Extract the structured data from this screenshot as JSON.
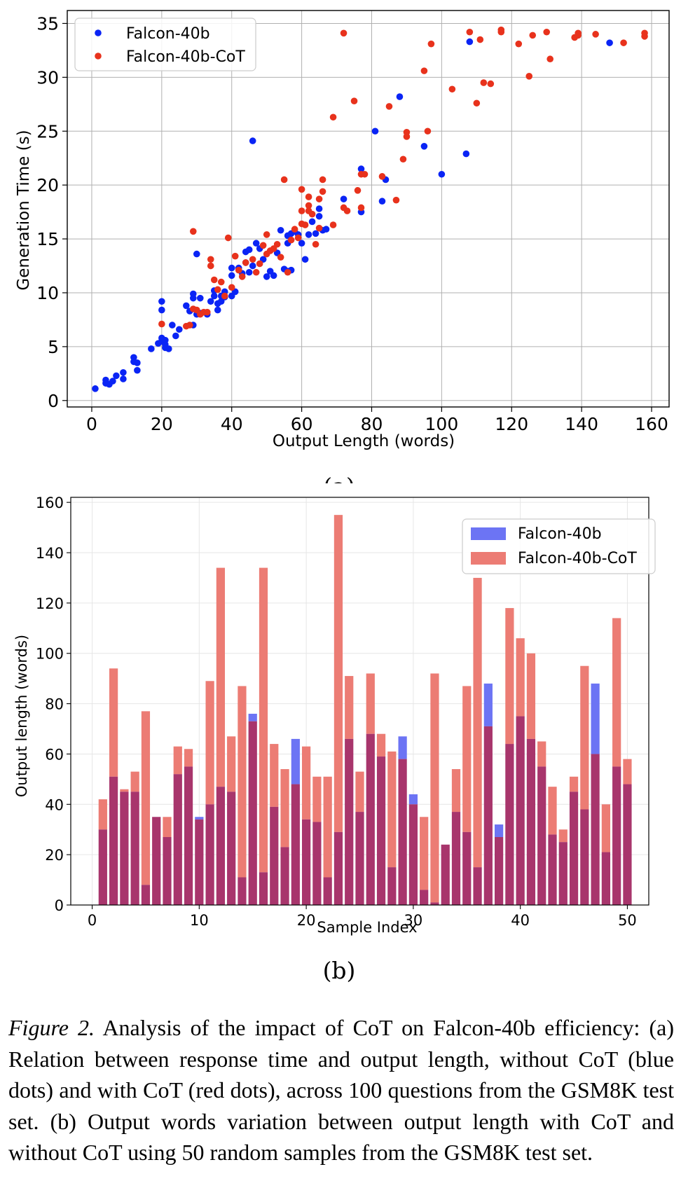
{
  "chart_data": [
    {
      "type": "scatter",
      "panel_label": "(a)",
      "xlabel": "Output Length (words)",
      "ylabel": "Generation Time (s)",
      "xlim": [
        -7,
        165
      ],
      "ylim": [
        -0.6,
        36.2
      ],
      "xticks": [
        0,
        20,
        40,
        60,
        80,
        100,
        120,
        140,
        160
      ],
      "yticks": [
        0,
        5,
        10,
        15,
        20,
        25,
        30,
        35
      ],
      "grid": true,
      "legend_position": "top-left",
      "series": [
        {
          "name": "Falcon-40b",
          "color": "#0a24f5",
          "points": [
            [
              1,
              1.1
            ],
            [
              4,
              1.6
            ],
            [
              4,
              1.9
            ],
            [
              5,
              1.5
            ],
            [
              6,
              1.8
            ],
            [
              7,
              2.3
            ],
            [
              9,
              2.0
            ],
            [
              9,
              2.6
            ],
            [
              12,
              3.6
            ],
            [
              12,
              4.0
            ],
            [
              13,
              2.8
            ],
            [
              13,
              3.5
            ],
            [
              17,
              4.8
            ],
            [
              19,
              5.3
            ],
            [
              20,
              5.5
            ],
            [
              20,
              5.8
            ],
            [
              21,
              5.2
            ],
            [
              21,
              5.6
            ],
            [
              21,
              4.9
            ],
            [
              22,
              4.8
            ],
            [
              20,
              8.4
            ],
            [
              20,
              9.2
            ],
            [
              23,
              7.0
            ],
            [
              24,
              6.0
            ],
            [
              25,
              6.6
            ],
            [
              27,
              8.8
            ],
            [
              28,
              8.3
            ],
            [
              29,
              9.5
            ],
            [
              29,
              9.9
            ],
            [
              29,
              7.0
            ],
            [
              30,
              13.6
            ],
            [
              30,
              8.0
            ],
            [
              31,
              9.5
            ],
            [
              31,
              8.1
            ],
            [
              33,
              8.0
            ],
            [
              34,
              9.2
            ],
            [
              35,
              9.7
            ],
            [
              35,
              10.2
            ],
            [
              36,
              8.4
            ],
            [
              36,
              9.0
            ],
            [
              37,
              9.2
            ],
            [
              37,
              9.7
            ],
            [
              38,
              10.1
            ],
            [
              38,
              9.6
            ],
            [
              40,
              9.7
            ],
            [
              40,
              11.6
            ],
            [
              40,
              12.3
            ],
            [
              41,
              10.1
            ],
            [
              42,
              12.3
            ],
            [
              43,
              11.8
            ],
            [
              44,
              12.8
            ],
            [
              44,
              13.8
            ],
            [
              45,
              14.0
            ],
            [
              45,
              11.9
            ],
            [
              46,
              24.1
            ],
            [
              46,
              12.5
            ],
            [
              47,
              14.6
            ],
            [
              48,
              14.1
            ],
            [
              49,
              13.1
            ],
            [
              50,
              11.5
            ],
            [
              51,
              12.0
            ],
            [
              52,
              11.6
            ],
            [
              53,
              13.7
            ],
            [
              54,
              15.8
            ],
            [
              55,
              12.2
            ],
            [
              56,
              12.0
            ],
            [
              56,
              14.6
            ],
            [
              56,
              15.3
            ],
            [
              57,
              12.1
            ],
            [
              57,
              15.5
            ],
            [
              58,
              15.7
            ],
            [
              59,
              15.4
            ],
            [
              60,
              14.6
            ],
            [
              61,
              13.1
            ],
            [
              62,
              15.4
            ],
            [
              63,
              16.6
            ],
            [
              64,
              15.5
            ],
            [
              65,
              17.1
            ],
            [
              65,
              17.8
            ],
            [
              66,
              15.8
            ],
            [
              67,
              15.9
            ],
            [
              72,
              18.7
            ],
            [
              77,
              17.5
            ],
            [
              77,
              21.5
            ],
            [
              81,
              25.0
            ],
            [
              83,
              18.5
            ],
            [
              84,
              20.5
            ],
            [
              88,
              28.2
            ],
            [
              95,
              23.6
            ],
            [
              100,
              21.0
            ],
            [
              107,
              22.9
            ],
            [
              108,
              33.3
            ],
            [
              148,
              33.2
            ]
          ]
        },
        {
          "name": "Falcon-40b-CoT",
          "color": "#e8321c",
          "points": [
            [
              20,
              7.1
            ],
            [
              27,
              6.9
            ],
            [
              28,
              7.0
            ],
            [
              29,
              15.7
            ],
            [
              29,
              8.5
            ],
            [
              30,
              8.4
            ],
            [
              31,
              8.0
            ],
            [
              32,
              8.2
            ],
            [
              33,
              8.2
            ],
            [
              34,
              12.5
            ],
            [
              34,
              13.1
            ],
            [
              35,
              11.2
            ],
            [
              36,
              10.3
            ],
            [
              37,
              11.0
            ],
            [
              38,
              9.7
            ],
            [
              39,
              15.1
            ],
            [
              40,
              10.5
            ],
            [
              41,
              13.4
            ],
            [
              42,
              12.1
            ],
            [
              43,
              11.5
            ],
            [
              44,
              12.8
            ],
            [
              46,
              13.1
            ],
            [
              47,
              11.9
            ],
            [
              48,
              12.7
            ],
            [
              49,
              14.4
            ],
            [
              50,
              13.6
            ],
            [
              50,
              15.4
            ],
            [
              51,
              13.9
            ],
            [
              52,
              14.1
            ],
            [
              53,
              14.5
            ],
            [
              54,
              13.3
            ],
            [
              55,
              20.5
            ],
            [
              56,
              11.9
            ],
            [
              57,
              14.9
            ],
            [
              58,
              15.9
            ],
            [
              59,
              15.1
            ],
            [
              60,
              16.4
            ],
            [
              60,
              17.6
            ],
            [
              60,
              19.6
            ],
            [
              61,
              16.3
            ],
            [
              62,
              17.6
            ],
            [
              62,
              18.1
            ],
            [
              62,
              18.9
            ],
            [
              63,
              17.3
            ],
            [
              64,
              14.5
            ],
            [
              65,
              16.0
            ],
            [
              65,
              18.7
            ],
            [
              66,
              19.4
            ],
            [
              66,
              20.5
            ],
            [
              69,
              16.3
            ],
            [
              69,
              26.3
            ],
            [
              72,
              17.9
            ],
            [
              72,
              34.1
            ],
            [
              73,
              17.6
            ],
            [
              75,
              27.8
            ],
            [
              76,
              19.5
            ],
            [
              77,
              21.0
            ],
            [
              77,
              17.9
            ],
            [
              78,
              21.0
            ],
            [
              83,
              20.8
            ],
            [
              85,
              27.3
            ],
            [
              87,
              18.6
            ],
            [
              89,
              22.4
            ],
            [
              90,
              24.5
            ],
            [
              90,
              24.9
            ],
            [
              95,
              30.6
            ],
            [
              96,
              25.0
            ],
            [
              97,
              33.1
            ],
            [
              103,
              28.9
            ],
            [
              108,
              34.2
            ],
            [
              110,
              27.6
            ],
            [
              111,
              33.5
            ],
            [
              112,
              29.5
            ],
            [
              114,
              29.4
            ],
            [
              117,
              34.2
            ],
            [
              117,
              34.4
            ],
            [
              122,
              33.1
            ],
            [
              125,
              30.1
            ],
            [
              126,
              33.9
            ],
            [
              130,
              34.2
            ],
            [
              131,
              31.7
            ],
            [
              138,
              33.7
            ],
            [
              139,
              33.9
            ],
            [
              139,
              34.1
            ],
            [
              144,
              34.0
            ],
            [
              152,
              33.2
            ],
            [
              158,
              33.8
            ],
            [
              158,
              34.1
            ]
          ]
        }
      ]
    },
    {
      "type": "bar",
      "panel_label": "(b)",
      "xlabel": "Sample Index",
      "ylabel": "Output length (words)",
      "xlim": [
        -2,
        52
      ],
      "ylim": [
        0,
        162
      ],
      "xticks": [
        0,
        10,
        20,
        30,
        40,
        50
      ],
      "yticks": [
        0,
        20,
        40,
        60,
        80,
        100,
        120,
        140,
        160
      ],
      "grid": true,
      "legend_position": "top-right",
      "categories": [
        1,
        2,
        3,
        4,
        5,
        6,
        7,
        8,
        9,
        10,
        11,
        12,
        13,
        14,
        15,
        16,
        17,
        18,
        19,
        20,
        21,
        22,
        23,
        24,
        25,
        26,
        27,
        28,
        29,
        30,
        31,
        32,
        33,
        34,
        35,
        36,
        37,
        38,
        39,
        40,
        41,
        42,
        43,
        44,
        45,
        46,
        47,
        48,
        49,
        50
      ],
      "series": [
        {
          "name": "Falcon-40b",
          "color": "#6c74f4",
          "values": [
            30,
            51,
            45,
            45,
            8,
            35,
            27,
            52,
            55,
            35,
            40,
            47,
            45,
            11,
            76,
            13,
            39,
            23,
            66,
            34,
            33,
            11,
            29,
            66,
            37,
            68,
            59,
            15,
            67,
            44,
            6,
            1,
            24,
            37,
            29,
            15,
            88,
            32,
            64,
            75,
            66,
            55,
            28,
            25,
            45,
            38,
            88,
            21,
            55,
            48
          ]
        },
        {
          "name": "Falcon-40b-CoT",
          "color": "#ec7c74",
          "values": [
            42,
            94,
            46,
            53,
            77,
            35,
            35,
            63,
            62,
            34,
            89,
            134,
            67,
            87,
            73,
            134,
            64,
            54,
            48,
            63,
            51,
            51,
            155,
            91,
            53,
            92,
            68,
            61,
            58,
            40,
            35,
            92,
            24,
            54,
            87,
            130,
            71,
            27,
            118,
            106,
            100,
            65,
            47,
            30,
            51,
            95,
            60,
            40,
            114,
            58
          ]
        }
      ]
    }
  ],
  "figure": {
    "caption_label": "Figure 2.",
    "caption_text": " Analysis of the impact of CoT on Falcon-40b efficiency: (a) Relation between response time and output length, without CoT (blue dots) and with CoT (red dots), across 100 questions from the GSM8K test set. (b) Output words variation between output length with CoT and without CoT using 50 random samples from the GSM8K test set."
  },
  "colors": {
    "overlap_bar": "#a8356c",
    "grid": "#b0b0b0",
    "grid_light": "#e6e6e6"
  }
}
